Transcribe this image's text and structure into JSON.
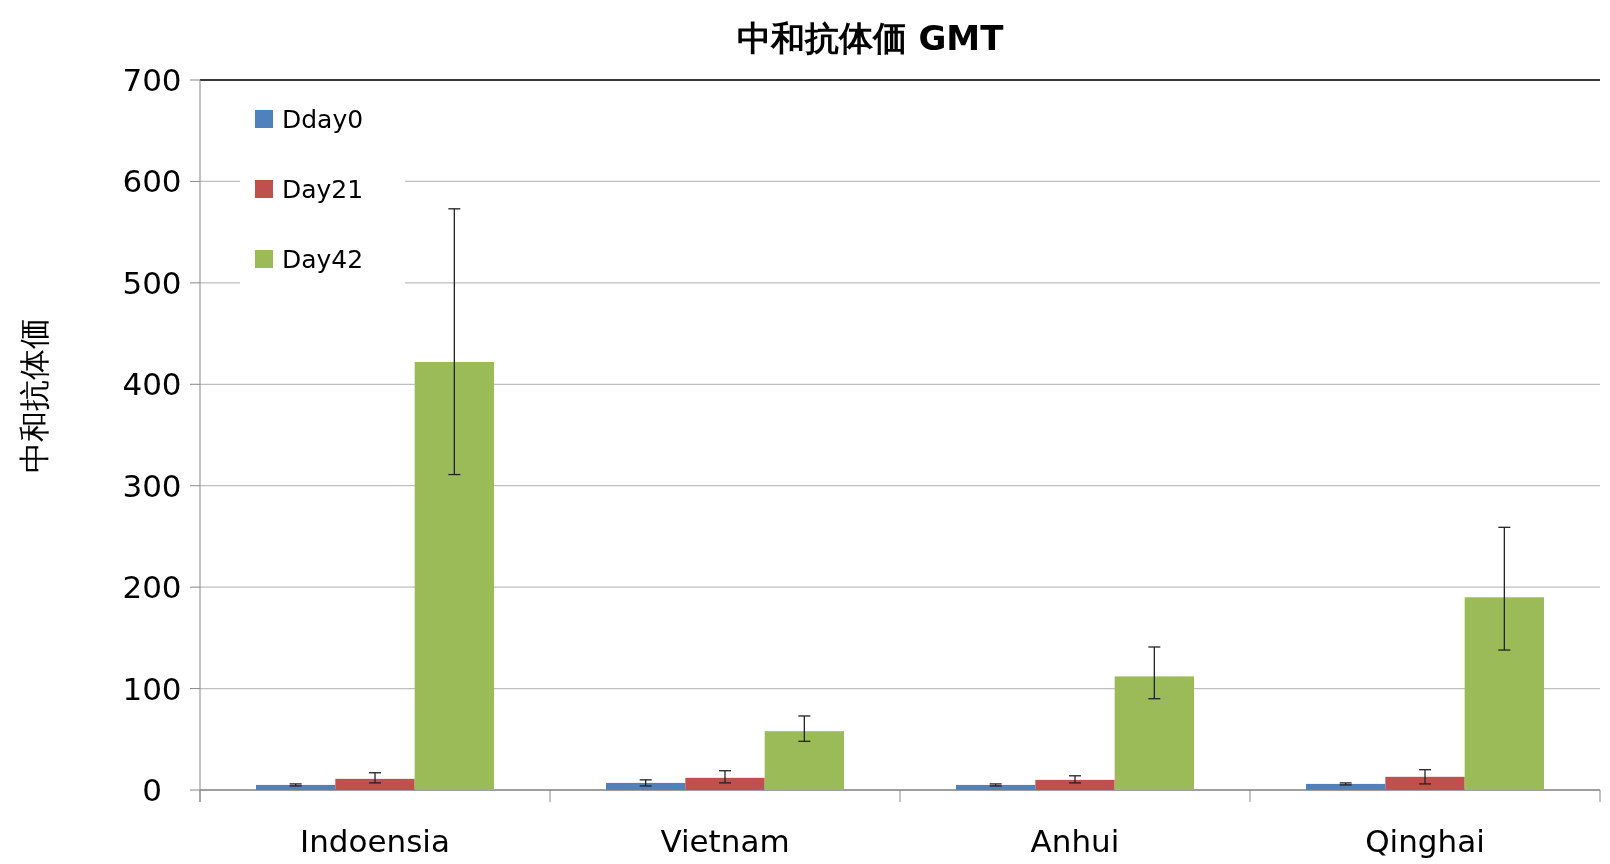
{
  "chart_data": {
    "type": "bar",
    "title": "中和抗体価 GMT",
    "ylabel": "中和抗体価",
    "categories": [
      "Indoensia",
      "Vietnam",
      "Anhui",
      "Qinghai"
    ],
    "series": [
      {
        "name": "Dday0",
        "color": "#4f81bd",
        "values": [
          5,
          7,
          5,
          6
        ],
        "errors": [
          [
            4,
            6
          ],
          [
            4,
            10
          ],
          [
            4,
            6
          ],
          [
            5,
            7
          ]
        ]
      },
      {
        "name": "Day21",
        "color": "#c0504d",
        "values": [
          11,
          12,
          10,
          13
        ],
        "errors": [
          [
            7,
            17
          ],
          [
            7,
            19
          ],
          [
            7,
            14
          ],
          [
            6,
            20
          ]
        ]
      },
      {
        "name": "Day42",
        "color": "#9bbb59",
        "values": [
          422,
          58,
          112,
          190
        ],
        "errors": [
          [
            311,
            573
          ],
          [
            48,
            73
          ],
          [
            90,
            141
          ],
          [
            138,
            259
          ]
        ]
      }
    ],
    "ylim": [
      0,
      700
    ],
    "yticks": [
      0,
      100,
      200,
      300,
      400,
      500,
      600,
      700
    ],
    "grid": "y",
    "legend": "top left"
  }
}
